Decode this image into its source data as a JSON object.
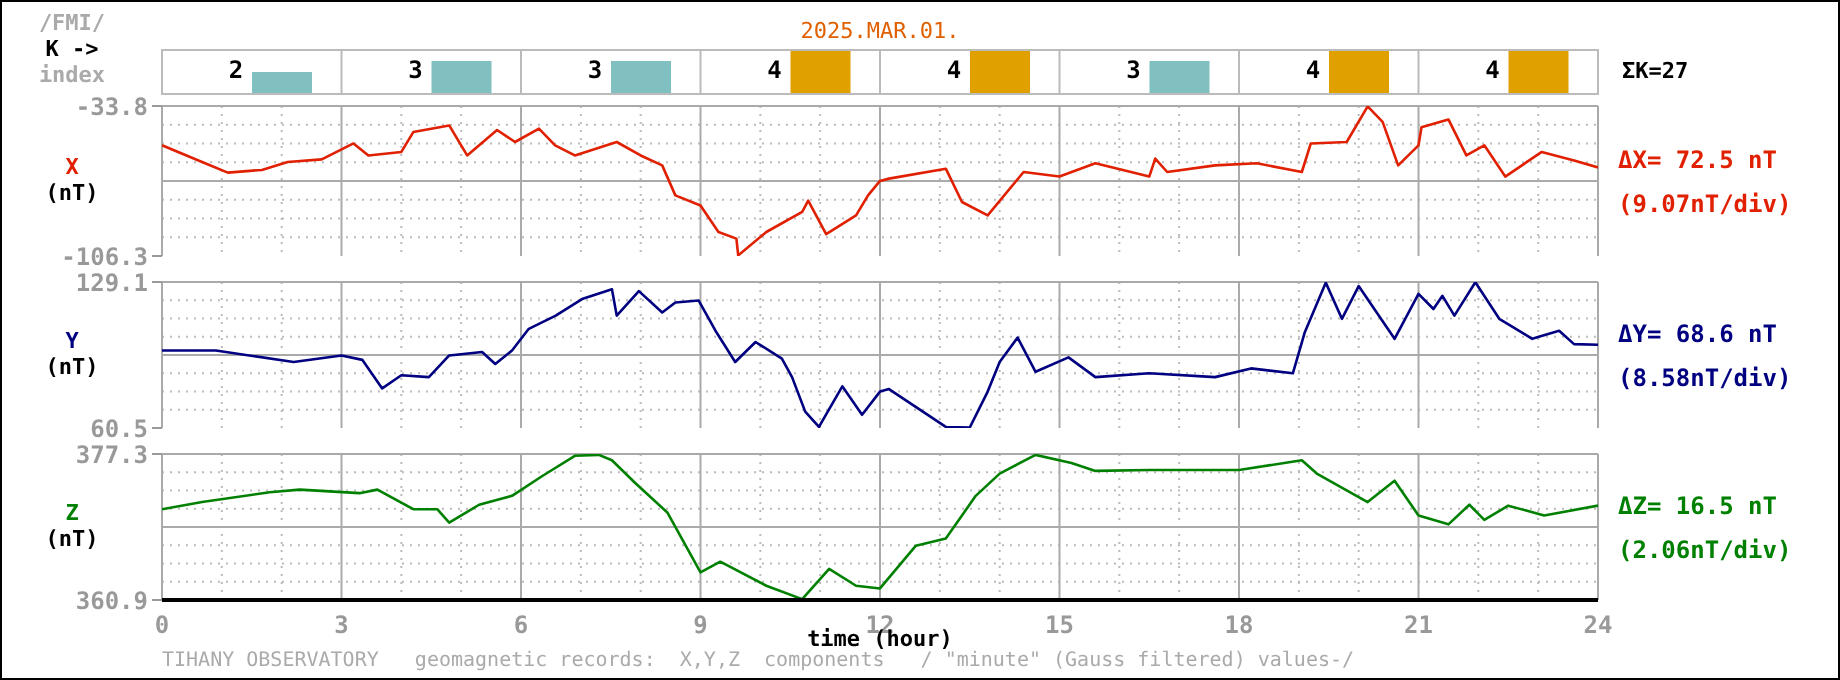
{
  "chart_data": [
    {
      "type": "bar",
      "title": "2025.MAR.01.",
      "ylabel": "/FMI/\nK ->\nindex",
      "categories": [
        null,
        null,
        null,
        null,
        null,
        null,
        null,
        null
      ],
      "values": [
        2,
        3,
        3,
        4,
        4,
        3,
        4,
        4
      ],
      "colors": [
        "#80c0c0",
        "#80c0c0",
        "#80c0c0",
        "#e0a000",
        "#e0a000",
        "#80c0c0",
        "#e0a000",
        "#e0a000"
      ],
      "data_labels": true,
      "tick_labels": false,
      "annotations": [
        "ΣK=27"
      ]
    },
    {
      "type": "line",
      "ylabel": "X\n(nT)",
      "series": [
        {
          "color": "#e02000",
          "x": [
            0,
            0.67,
            1.1,
            1.67,
            2.1,
            2.67,
            3.2,
            3.45,
            4.0,
            4.2,
            4.8,
            5.1,
            5.6,
            5.9,
            6.3,
            6.57,
            6.9,
            7.6,
            8.0,
            8.36,
            8.58,
            9.0,
            9.3,
            9.6,
            9.63,
            10.1,
            10.7,
            10.8,
            11.1,
            11.6,
            11.8,
            12.0,
            12.15,
            13.1,
            13.37,
            13.8,
            14.4,
            15.0,
            15.6,
            16.5,
            16.6,
            16.8,
            17.6,
            18.3,
            19.05,
            19.2,
            19.8,
            20.15,
            20.4,
            20.66,
            21.0,
            21.05,
            21.5,
            21.8,
            22.1,
            22.45,
            23.06,
            23.6,
            24
          ],
          "values": [
            -52.8,
            -60.9,
            -66.0,
            -64.7,
            -60.9,
            -59.6,
            -51.9,
            -57.7,
            -56.0,
            -46.4,
            -43.2,
            -57.7,
            -45.4,
            -51.2,
            -44.7,
            -52.8,
            -57.7,
            -51.2,
            -57.7,
            -62.5,
            -77.0,
            -81.9,
            -94.7,
            -97.9,
            -106.0,
            -94.7,
            -85.0,
            -79.5,
            -95.7,
            -86.7,
            -77.0,
            -70.0,
            -68.9,
            -64.1,
            -80.2,
            -86.7,
            -65.7,
            -67.9,
            -61.5,
            -67.9,
            -59.2,
            -65.7,
            -62.5,
            -61.5,
            -65.7,
            -51.9,
            -51.2,
            -34.0,
            -41.5,
            -62.5,
            -52.8,
            -44.1,
            -40.3,
            -57.7,
            -52.8,
            -67.9,
            -56.0,
            -60.1,
            -63.5
          ]
        }
      ],
      "xlim": [
        0,
        24
      ],
      "xticks": [
        0,
        3,
        6,
        9,
        12,
        15,
        18,
        21,
        24
      ],
      "ylim": [
        -106.3,
        -33.8
      ],
      "yticks": [
        -33.8,
        -106.3
      ],
      "grid": true,
      "tick_labels": "y",
      "annotations": [
        "ΔX= 72.5 nT",
        "(9.07nT/div)"
      ]
    },
    {
      "type": "line",
      "ylabel": "Y\n(nT)",
      "series": [
        {
          "color": "#000080",
          "x": [
            0,
            0.9,
            2.2,
            3.0,
            3.35,
            3.68,
            4.0,
            4.46,
            4.8,
            5.35,
            5.57,
            5.85,
            6.13,
            6.58,
            7.02,
            7.52,
            7.6,
            7.97,
            8.36,
            8.58,
            8.97,
            9.25,
            9.58,
            9.92,
            10.36,
            10.53,
            10.75,
            10.98,
            11.37,
            11.7,
            12.0,
            12.15,
            13.1,
            13.5,
            13.8,
            14.0,
            14.3,
            14.6,
            15.15,
            15.6,
            16.5,
            17.6,
            18.2,
            18.9,
            19.1,
            19.45,
            19.72,
            20.0,
            20.6,
            21.0,
            21.25,
            21.4,
            21.6,
            21.95,
            22.35,
            22.9,
            23.35,
            23.6,
            24
          ],
          "values": [
            96.9,
            96.9,
            91.5,
            94.6,
            92.5,
            79.1,
            85.3,
            84.4,
            94.6,
            96.2,
            90.6,
            96.9,
            107.1,
            113.3,
            121.1,
            125.7,
            113.3,
            124.8,
            114.8,
            119.5,
            120.4,
            106.2,
            91.5,
            100.9,
            93.1,
            84.4,
            68.2,
            61.0,
            80.1,
            66.7,
            77.6,
            78.8,
            61.0,
            60.7,
            77.6,
            91.5,
            103.0,
            86.9,
            93.7,
            84.4,
            86.2,
            84.4,
            88.5,
            86.2,
            105.5,
            128.8,
            111.8,
            127.2,
            102.4,
            123.5,
            116.4,
            122.6,
            113.3,
            129.0,
            111.8,
            102.4,
            106.2,
            99.9,
            99.6
          ]
        }
      ],
      "xlim": [
        0,
        24
      ],
      "xticks": [
        0,
        3,
        6,
        9,
        12,
        15,
        18,
        21,
        24
      ],
      "ylim": [
        60.5,
        129.1
      ],
      "yticks": [
        129.1,
        60.5
      ],
      "grid": true,
      "tick_labels": "y",
      "annotations": [
        "ΔY= 68.6 nT",
        "(8.58nT/div)"
      ]
    },
    {
      "type": "line",
      "ylabel": "Z\n(nT)",
      "xlabel": "time (hour)",
      "series": [
        {
          "color": "#008000",
          "x": [
            0,
            0.67,
            1.8,
            2.3,
            3.3,
            3.6,
            4.2,
            4.6,
            4.8,
            5.3,
            5.85,
            6.35,
            6.9,
            7.3,
            7.52,
            7.9,
            8.45,
            9.0,
            9.33,
            10.1,
            10.7,
            11.15,
            11.6,
            12.0,
            12.6,
            13.1,
            13.6,
            14.0,
            14.6,
            15.2,
            15.6,
            16.5,
            18.0,
            19.05,
            19.3,
            20.15,
            20.6,
            21.0,
            21.5,
            21.85,
            22.1,
            22.5,
            23.1,
            24
          ],
          "values": [
            371.1,
            371.9,
            373.0,
            373.3,
            372.9,
            373.3,
            371.1,
            371.1,
            369.6,
            371.6,
            372.6,
            374.8,
            377.1,
            377.2,
            376.6,
            374.1,
            370.7,
            364.0,
            365.2,
            362.5,
            361.0,
            364.4,
            362.5,
            362.2,
            367.0,
            367.8,
            372.6,
            375.1,
            377.2,
            376.3,
            375.4,
            375.5,
            375.5,
            376.6,
            375.1,
            371.9,
            374.3,
            370.4,
            369.4,
            371.6,
            369.9,
            371.5,
            370.4,
            371.5
          ]
        }
      ],
      "xlim": [
        0,
        24
      ],
      "xticks": [
        0,
        3,
        6,
        9,
        12,
        15,
        18,
        21,
        24
      ],
      "ylim": [
        360.9,
        377.3
      ],
      "yticks": [
        377.3,
        360.9
      ],
      "grid": true,
      "annotations": [
        "ΔZ= 16.5 nT",
        "(2.06nT/div)",
        "TIHANY OBSERVATORY   geomagnetic records:  X,Y,Z  components   / \"minute\" (Gauss filtered) values-/"
      ]
    }
  ]
}
